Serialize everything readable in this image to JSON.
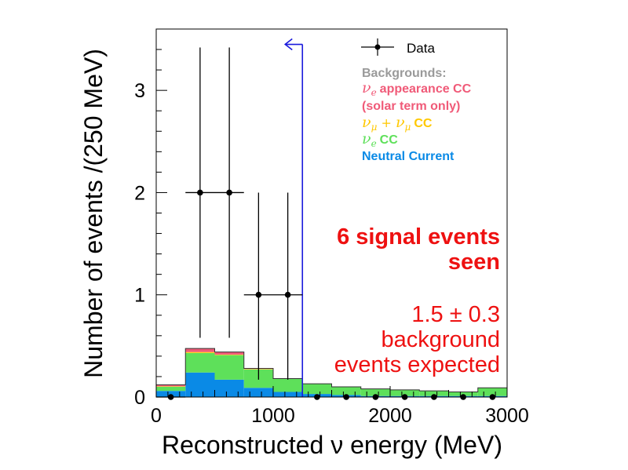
{
  "chart_data": {
    "type": "bar",
    "subtype": "stacked-histogram-with-data-points",
    "xlabel": "Reconstructed ν energy (MeV)",
    "ylabel": "Number of events /(250 MeV)",
    "xlim": [
      0,
      3000
    ],
    "ylim": [
      0,
      3.6
    ],
    "x_ticks": [
      0,
      1000,
      2000,
      3000
    ],
    "x_tick_labels": [
      "0",
      "1000",
      "2000",
      "3000"
    ],
    "y_ticks": [
      0,
      1,
      2,
      3
    ],
    "y_tick_labels": [
      "0",
      "1",
      "2",
      "3"
    ],
    "bin_edges": [
      0,
      250,
      500,
      750,
      1000,
      1250,
      1500,
      1750,
      2000,
      2250,
      2500,
      2750,
      3000
    ],
    "backgrounds_title": "Backgrounds:",
    "series": [
      {
        "name": "Neutral Current",
        "color": "#0a8ae6",
        "values": [
          0.06,
          0.24,
          0.17,
          0.09,
          0.05,
          0.03,
          0.02,
          0.01,
          0.01,
          0.01,
          0.01,
          0.01
        ]
      },
      {
        "name": "νe CC",
        "color": "#5ee05a",
        "values": [
          0.04,
          0.19,
          0.24,
          0.18,
          0.13,
          0.1,
          0.08,
          0.07,
          0.06,
          0.05,
          0.04,
          0.08
        ]
      },
      {
        "name": "νμ + νμ CC",
        "color": "#ffd21c",
        "values": [
          0.005,
          0.01,
          0.005,
          0.005,
          0.0,
          0.0,
          0.0,
          0.0,
          0.0,
          0.0,
          0.0,
          0.0
        ]
      },
      {
        "name": "νe appearance CC (solar term only)",
        "color": "#f05a78",
        "values": [
          0.015,
          0.035,
          0.025,
          0.005,
          0.0,
          0.0,
          0.0,
          0.0,
          0.0,
          0.0,
          0.0,
          0.0
        ]
      }
    ],
    "data_series": {
      "name": "Data",
      "x": [
        125,
        375,
        625,
        875,
        1125,
        1375,
        1625,
        1875,
        2125,
        2375,
        2625,
        2875
      ],
      "y": [
        0,
        2,
        2,
        1,
        1,
        0,
        0,
        0,
        0,
        0,
        0,
        0
      ],
      "x_err": [
        125,
        125,
        125,
        125,
        125,
        0,
        0,
        0,
        0,
        0,
        0,
        0
      ],
      "y_err_low": [
        0,
        1.42,
        1.42,
        0.83,
        0.83,
        0,
        0,
        0,
        0,
        0,
        0,
        0
      ],
      "y_err_high": [
        0,
        1.42,
        1.42,
        1.0,
        1.0,
        0,
        0,
        0,
        0,
        0,
        0,
        0
      ]
    },
    "cut": {
      "x": 1250,
      "y_top": 3.45,
      "direction": "left",
      "color": "#1a1adc"
    },
    "legend_labels": {
      "data": "Data",
      "backgrounds": "Backgrounds:",
      "nue_app_line1": "appearance CC",
      "nue_app_line2": "(solar term only)",
      "numu": "CC",
      "nue": "CC",
      "nc": "Neutral Current"
    },
    "legend_colors": {
      "backgrounds": "#9a9a9a",
      "nue_app": "#f05a78",
      "numu": "#ffc800",
      "nue": "#5ee05a",
      "nc": "#0a8ae6"
    },
    "annotations": {
      "signal_line1": "6 signal events",
      "signal_line2": "seen",
      "bkg_line1": "1.5 ± 0.3",
      "bkg_line2": "background",
      "bkg_line3": "events expected",
      "color": "#ee1111"
    },
    "grid": false,
    "legend_position": "top-right"
  }
}
